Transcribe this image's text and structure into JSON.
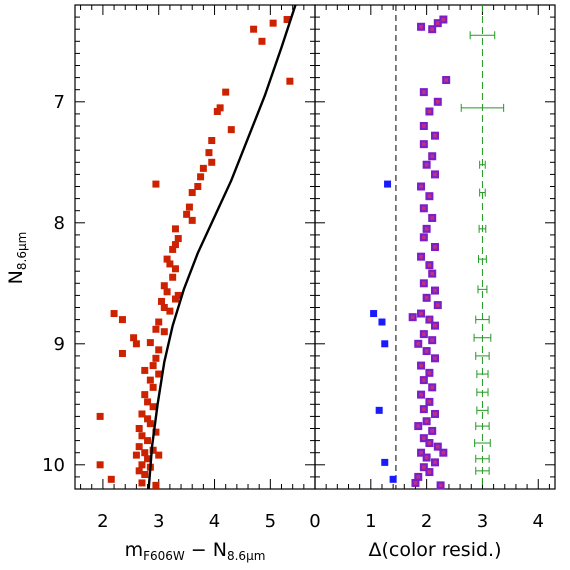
{
  "figure": {
    "y_axis_label": {
      "main": "N",
      "sub": "8.6μm"
    },
    "left_xlabel": {
      "main": "m",
      "sub1": "F606W",
      "mid": " − N",
      "sub2": "8.6μm"
    },
    "right_xlabel": "Δ(color resid.)"
  },
  "colors": {
    "red_points": "#cc2200",
    "blue_points": "#1a1aff",
    "purple_points": "#7a1fc8",
    "purple_inner": "#c03080",
    "green_errorbars": "#229922",
    "fit_line": "#000000"
  },
  "chart_data": [
    {
      "type": "scatter",
      "panel": "left",
      "xlabel": "m_F606W − N_8.6μm",
      "ylabel": "N_8.6μm",
      "xlim": [
        1.5,
        5.8
      ],
      "ylim": [
        10.2,
        6.2
      ],
      "y_inverted": true,
      "xticks": [
        2,
        3,
        4,
        5
      ],
      "yticks": [
        7,
        8,
        9,
        10
      ],
      "series": [
        {
          "marker": "square",
          "color": "#cc2200",
          "points": [
            [
              5.3,
              6.32
            ],
            [
              5.05,
              6.35
            ],
            [
              4.7,
              6.4
            ],
            [
              4.85,
              6.5
            ],
            [
              5.35,
              6.83
            ],
            [
              4.2,
              6.92
            ],
            [
              4.1,
              7.05
            ],
            [
              4.05,
              7.08
            ],
            [
              4.3,
              7.23
            ],
            [
              3.95,
              7.32
            ],
            [
              3.9,
              7.42
            ],
            [
              3.95,
              7.5
            ],
            [
              3.8,
              7.55
            ],
            [
              3.75,
              7.62
            ],
            [
              2.95,
              7.68
            ],
            [
              3.7,
              7.7
            ],
            [
              3.6,
              7.75
            ],
            [
              3.55,
              7.87
            ],
            [
              3.5,
              7.93
            ],
            [
              3.6,
              7.98
            ],
            [
              3.3,
              8.05
            ],
            [
              3.35,
              8.13
            ],
            [
              3.3,
              8.18
            ],
            [
              3.25,
              8.22
            ],
            [
              3.15,
              8.3
            ],
            [
              3.2,
              8.34
            ],
            [
              3.3,
              8.38
            ],
            [
              3.25,
              8.45
            ],
            [
              3.1,
              8.52
            ],
            [
              3.15,
              8.57
            ],
            [
              3.35,
              8.6
            ],
            [
              3.05,
              8.65
            ],
            [
              3.1,
              8.7
            ],
            [
              3.2,
              8.73
            ],
            [
              3.3,
              8.63
            ],
            [
              2.2,
              8.75
            ],
            [
              2.35,
              8.8
            ],
            [
              3.0,
              8.82
            ],
            [
              2.95,
              8.88
            ],
            [
              3.1,
              8.9
            ],
            [
              2.55,
              8.95
            ],
            [
              2.85,
              8.99
            ],
            [
              2.6,
              9.0
            ],
            [
              3.0,
              9.05
            ],
            [
              2.35,
              9.08
            ],
            [
              2.95,
              9.12
            ],
            [
              2.9,
              9.18
            ],
            [
              2.75,
              9.22
            ],
            [
              3.0,
              9.25
            ],
            [
              2.85,
              9.3
            ],
            [
              2.9,
              9.36
            ],
            [
              2.75,
              9.42
            ],
            [
              2.8,
              9.48
            ],
            [
              2.9,
              9.52
            ],
            [
              2.7,
              9.58
            ],
            [
              2.8,
              9.62
            ],
            [
              1.95,
              9.6
            ],
            [
              2.85,
              9.66
            ],
            [
              2.65,
              9.7
            ],
            [
              2.95,
              9.73
            ],
            [
              2.7,
              9.76
            ],
            [
              2.8,
              9.8
            ],
            [
              2.65,
              9.85
            ],
            [
              2.9,
              9.88
            ],
            [
              2.75,
              9.9
            ],
            [
              2.6,
              9.92
            ],
            [
              2.8,
              9.95
            ],
            [
              3.0,
              9.92
            ],
            [
              2.7,
              10.0
            ],
            [
              2.85,
              10.02
            ],
            [
              2.65,
              10.05
            ],
            [
              2.75,
              10.08
            ],
            [
              2.15,
              10.12
            ],
            [
              2.7,
              10.15
            ],
            [
              2.95,
              10.17
            ],
            [
              1.95,
              10.0
            ]
          ]
        }
      ],
      "fit_curve": [
        [
          5.45,
          6.2
        ],
        [
          5.2,
          6.55
        ],
        [
          4.9,
          6.95
        ],
        [
          4.6,
          7.3
        ],
        [
          4.3,
          7.65
        ],
        [
          4.0,
          7.95
        ],
        [
          3.7,
          8.25
        ],
        [
          3.45,
          8.55
        ],
        [
          3.25,
          8.85
        ],
        [
          3.1,
          9.15
        ],
        [
          2.98,
          9.5
        ],
        [
          2.88,
          9.85
        ],
        [
          2.82,
          10.2
        ]
      ]
    },
    {
      "type": "scatter",
      "panel": "right",
      "xlabel": "Δ(color resid.)",
      "xlim": [
        0,
        4.3
      ],
      "ylim": [
        10.2,
        6.2
      ],
      "y_inverted": true,
      "xticks": [
        0,
        1,
        2,
        3,
        4
      ],
      "dashed_vline_x": 1.45,
      "series": [
        {
          "name": "outliers",
          "marker": "square",
          "color": "#1a1aff",
          "points": [
            [
              1.3,
              7.68
            ],
            [
              1.05,
              8.75
            ],
            [
              1.2,
              8.82
            ],
            [
              1.25,
              9.0
            ],
            [
              1.15,
              9.55
            ],
            [
              1.25,
              9.98
            ],
            [
              1.4,
              10.12
            ]
          ]
        },
        {
          "name": "members",
          "marker": "square-inner",
          "color": "#7a1fc8",
          "points": [
            [
              1.9,
              6.38
            ],
            [
              2.2,
              6.35
            ],
            [
              2.3,
              6.32
            ],
            [
              2.1,
              6.4
            ],
            [
              2.35,
              6.82
            ],
            [
              1.95,
              6.92
            ],
            [
              2.2,
              7.0
            ],
            [
              2.05,
              7.08
            ],
            [
              1.95,
              7.2
            ],
            [
              2.15,
              7.28
            ],
            [
              1.95,
              7.35
            ],
            [
              2.1,
              7.45
            ],
            [
              2.0,
              7.52
            ],
            [
              2.15,
              7.6
            ],
            [
              1.9,
              7.7
            ],
            [
              2.05,
              7.78
            ],
            [
              1.95,
              7.88
            ],
            [
              2.1,
              7.96
            ],
            [
              2.0,
              8.05
            ],
            [
              1.95,
              8.12
            ],
            [
              2.15,
              8.2
            ],
            [
              1.9,
              8.28
            ],
            [
              2.05,
              8.35
            ],
            [
              2.1,
              8.42
            ],
            [
              1.95,
              8.5
            ],
            [
              2.15,
              8.56
            ],
            [
              2.0,
              8.62
            ],
            [
              2.2,
              8.68
            ],
            [
              1.9,
              8.75
            ],
            [
              2.05,
              8.8
            ],
            [
              1.75,
              8.78
            ],
            [
              2.15,
              8.85
            ],
            [
              1.95,
              8.92
            ],
            [
              2.1,
              8.97
            ],
            [
              1.85,
              9.0
            ],
            [
              2.0,
              9.06
            ],
            [
              2.15,
              9.12
            ],
            [
              1.9,
              9.18
            ],
            [
              2.05,
              9.24
            ],
            [
              1.95,
              9.3
            ],
            [
              2.1,
              9.36
            ],
            [
              1.9,
              9.42
            ],
            [
              2.05,
              9.48
            ],
            [
              1.95,
              9.54
            ],
            [
              2.15,
              9.58
            ],
            [
              2.0,
              9.64
            ],
            [
              1.85,
              9.68
            ],
            [
              2.1,
              9.72
            ],
            [
              1.95,
              9.78
            ],
            [
              2.05,
              9.82
            ],
            [
              2.2,
              9.85
            ],
            [
              1.9,
              9.9
            ],
            [
              2.0,
              9.94
            ],
            [
              2.15,
              9.98
            ],
            [
              1.95,
              10.02
            ],
            [
              2.05,
              10.06
            ],
            [
              1.85,
              10.1
            ],
            [
              2.25,
              10.17
            ],
            [
              2.3,
              9.9
            ],
            [
              1.8,
              10.15
            ]
          ]
        },
        {
          "name": "errors",
          "marker": "errorbar",
          "color": "#229922",
          "center_x": 3.0,
          "points": [
            [
              3.0,
              6.45,
              0.22
            ],
            [
              3.0,
              7.05,
              0.38
            ],
            [
              3.0,
              7.52,
              0.05
            ],
            [
              3.0,
              7.75,
              0.05
            ],
            [
              3.0,
              8.05,
              0.06
            ],
            [
              3.0,
              8.3,
              0.07
            ],
            [
              3.0,
              8.55,
              0.08
            ],
            [
              3.0,
              8.8,
              0.12
            ],
            [
              3.0,
              8.95,
              0.15
            ],
            [
              3.0,
              9.1,
              0.12
            ],
            [
              3.0,
              9.25,
              0.1
            ],
            [
              3.0,
              9.4,
              0.1
            ],
            [
              3.0,
              9.55,
              0.1
            ],
            [
              3.0,
              9.68,
              0.12
            ],
            [
              3.0,
              9.82,
              0.14
            ],
            [
              3.0,
              9.95,
              0.12
            ],
            [
              3.0,
              10.05,
              0.12
            ]
          ]
        }
      ]
    }
  ]
}
